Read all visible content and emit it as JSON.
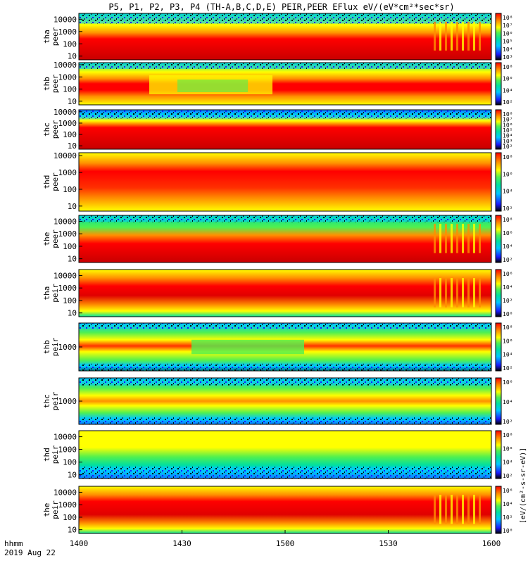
{
  "title": "P5, P1, P2, P3, P4 (TH-A,B,C,D,E) PEIR,PEER EFlux eV/(eV*cm²*sec*sr)",
  "colorbar_unit_label": "[eV/(cm²-s-sr-eV)]",
  "x_axis": {
    "row1_label": "hhmm",
    "row2_label": "2019 Aug 22",
    "ticks": [
      "1400",
      "1430",
      "1500",
      "1530",
      "1600"
    ],
    "range": [
      "14:00",
      "16:00"
    ]
  },
  "colors": {
    "spectrum": [
      "#000000",
      "#1a1aff",
      "#00c8ff",
      "#00e0a0",
      "#50f050",
      "#ffff00",
      "#ff9000",
      "#ff0000",
      "#c80000"
    ],
    "frame": "#000000",
    "background": "#ffffff"
  },
  "chart_data": {
    "type": "heatmap",
    "x_unit": "time (hhmm, UT)",
    "z_unit": "eV/(eV*cm²*sec*sr)",
    "panels": [
      {
        "probe": "tha",
        "instrument": "peer",
        "ylabel_line1": "tha",
        "ylabel_line2": "peer",
        "yscale": "log",
        "ylim": [
          5,
          30000
        ],
        "yticks": [
          "10000",
          "1000",
          "100",
          "10"
        ],
        "colorbar_ticks": [
          "10⁸",
          "10⁷",
          "10⁶",
          "10⁵",
          "10⁴",
          "10³"
        ]
      },
      {
        "probe": "thb",
        "instrument": "peer",
        "ylabel_line1": "thb",
        "ylabel_line2": "peer",
        "yscale": "log",
        "ylim": [
          5,
          15000
        ],
        "yticks": [
          "10000",
          "1000",
          "100",
          "10"
        ],
        "colorbar_ticks": [
          "10⁸",
          "10⁶",
          "10⁴",
          "10²"
        ]
      },
      {
        "probe": "thc",
        "instrument": "peer",
        "ylabel_line1": "thc",
        "ylabel_line2": "peer",
        "yscale": "log",
        "ylim": [
          5,
          15000
        ],
        "yticks": [
          "10000",
          "1000",
          "100",
          "10"
        ],
        "colorbar_ticks": [
          "10⁸",
          "10⁷",
          "10⁶",
          "10⁵",
          "10⁴",
          "10³",
          "10²"
        ]
      },
      {
        "probe": "thd",
        "instrument": "peer",
        "ylabel_line1": "thd",
        "ylabel_line2": "peer",
        "yscale": "log",
        "ylim": [
          5,
          15000
        ],
        "yticks": [
          "10000",
          "1000",
          "100",
          "10"
        ],
        "colorbar_ticks": [
          "10⁸",
          "10⁶",
          "10⁴",
          "10²"
        ]
      },
      {
        "probe": "the",
        "instrument": "peer",
        "ylabel_line1": "the",
        "ylabel_line2": "peer",
        "yscale": "log",
        "ylim": [
          5,
          30000
        ],
        "yticks": [
          "10000",
          "1000",
          "100",
          "10"
        ],
        "colorbar_ticks": [
          "10⁸",
          "10⁶",
          "10⁴",
          "10²"
        ]
      },
      {
        "probe": "tha",
        "instrument": "peir",
        "ylabel_line1": "tha",
        "ylabel_line2": "peir",
        "yscale": "log",
        "ylim": [
          5,
          30000
        ],
        "yticks": [
          "10000",
          "1000",
          "100",
          "10"
        ],
        "colorbar_ticks": [
          "10⁶",
          "10⁴",
          "10²",
          "10⁰"
        ]
      },
      {
        "probe": "thb",
        "instrument": "peir",
        "ylabel_line1": "thb",
        "ylabel_line2": "peir",
        "yscale": "log",
        "ylim": [
          100,
          10000
        ],
        "yticks": [
          "1000"
        ],
        "colorbar_ticks": [
          "10⁸",
          "10⁶",
          "10⁴",
          "10²"
        ]
      },
      {
        "probe": "thc",
        "instrument": "peir",
        "ylabel_line1": "thc",
        "ylabel_line2": "peir",
        "yscale": "log",
        "ylim": [
          100,
          10000
        ],
        "yticks": [
          "1000"
        ],
        "colorbar_ticks": [
          "10⁶",
          "10⁴",
          "10²"
        ]
      },
      {
        "probe": "thd",
        "instrument": "peir",
        "ylabel_line1": "thd",
        "ylabel_line2": "peir",
        "yscale": "log",
        "ylim": [
          5,
          30000
        ],
        "yticks": [
          "10000",
          "1000",
          "100",
          "10"
        ],
        "colorbar_ticks": [
          "10⁸",
          "10⁶",
          "10⁴",
          "10²"
        ]
      },
      {
        "probe": "the",
        "instrument": "peir",
        "ylabel_line1": "the",
        "ylabel_line2": "peir",
        "yscale": "log",
        "ylim": [
          5,
          30000
        ],
        "yticks": [
          "10000",
          "1000",
          "100",
          "10"
        ],
        "colorbar_ticks": [
          "10⁶",
          "10⁴",
          "10²",
          "10⁰"
        ]
      }
    ]
  }
}
